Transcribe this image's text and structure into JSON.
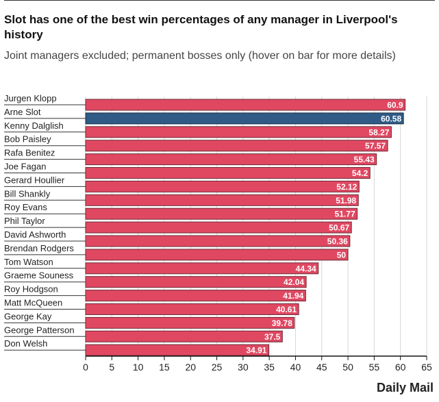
{
  "chart_data": {
    "type": "bar",
    "orientation": "horizontal",
    "title": "Slot has one of the best win percentages of any manager in Liverpool's history",
    "subtitle": "Joint managers excluded; permanent bosses only (hover on bar for more details)",
    "categories": [
      "Jurgen Klopp",
      "Arne Slot",
      "Kenny Dalglish",
      "Bob Paisley",
      "Rafa Benitez",
      "Joe Fagan",
      "Gerard Houllier",
      "Bill Shankly",
      "Roy Evans",
      "Phil Taylor",
      "David Ashworth",
      "Brendan Rodgers",
      "Tom Watson",
      "Graeme Souness",
      "Roy Hodgson",
      "Matt McQueen",
      "George Kay",
      "George Patterson",
      "Don Welsh"
    ],
    "values": [
      60.9,
      60.58,
      58.27,
      57.57,
      55.43,
      54.2,
      52.12,
      51.98,
      51.77,
      50.67,
      50.36,
      50,
      44.34,
      42.04,
      41.94,
      40.61,
      39.78,
      37.5,
      34.91
    ],
    "highlight": "Arne Slot",
    "xlim": [
      0,
      65
    ],
    "xticks": [
      0,
      5,
      10,
      15,
      20,
      25,
      30,
      35,
      40,
      45,
      50,
      55,
      60,
      65
    ],
    "grid": true,
    "colors": {
      "bar": "#e04862",
      "highlight": "#2f5b86",
      "border": "#6b2a35"
    },
    "source_logo": "Daily Mail"
  }
}
